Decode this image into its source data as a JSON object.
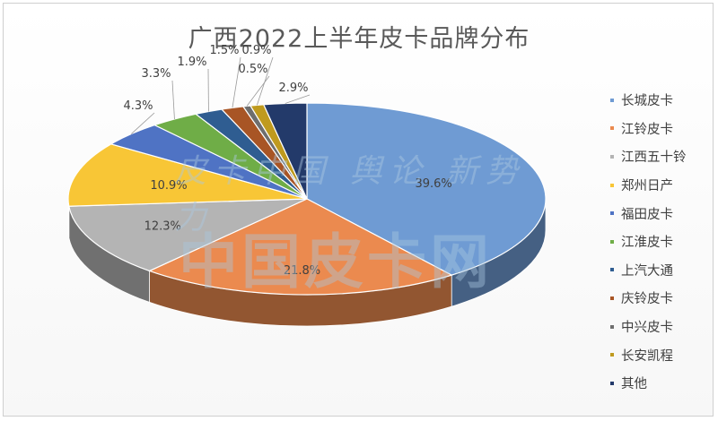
{
  "chart_data": {
    "type": "pie",
    "style": "3d-pie",
    "title": "广西2022上半年皮卡品牌分布",
    "slices": [
      {
        "label": "长城皮卡",
        "value": 39.6,
        "display": "39.6%",
        "color": "#6f9bd3"
      },
      {
        "label": "江铃皮卡",
        "value": 21.8,
        "display": "21.8%",
        "color": "#eb8a4f"
      },
      {
        "label": "江西五十铃",
        "value": 12.3,
        "display": "12.3%",
        "color": "#b4b4b4"
      },
      {
        "label": "郑州日产",
        "value": 10.9,
        "display": "10.9%",
        "color": "#f8c636"
      },
      {
        "label": "福田皮卡",
        "value": 4.3,
        "display": "4.3%",
        "color": "#4f73c4"
      },
      {
        "label": "江淮皮卡",
        "value": 3.3,
        "display": "3.3%",
        "color": "#6fad47"
      },
      {
        "label": "上汽大通",
        "value": 1.9,
        "display": "1.9%",
        "color": "#2f5d91"
      },
      {
        "label": "庆铃皮卡",
        "value": 1.5,
        "display": "1.5%",
        "color": "#a85525"
      },
      {
        "label": "中兴皮卡",
        "value": 0.5,
        "display": "0.5%",
        "color": "#6e6e6e"
      },
      {
        "label": "长安凯程",
        "value": 0.9,
        "display": "0.9%",
        "color": "#bf9a1e"
      },
      {
        "label": "其他",
        "value": 2.9,
        "display": "2.9%",
        "color": "#233a6a"
      }
    ],
    "legend_position": "right"
  },
  "watermark": {
    "line1": "皮卡中国 舆论 新势力",
    "line2": "中国皮卡网"
  }
}
